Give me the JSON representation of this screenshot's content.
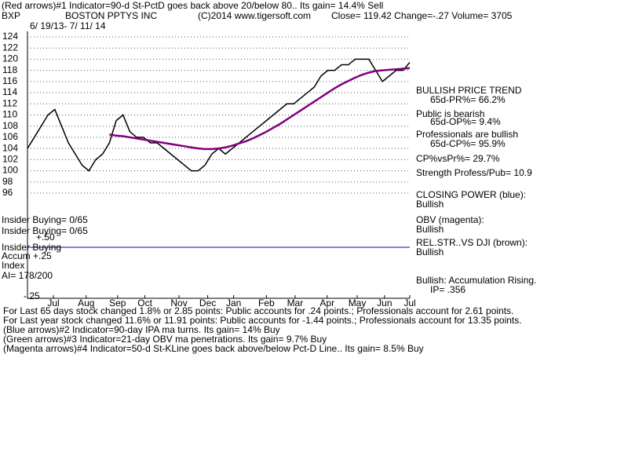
{
  "header": {
    "line1": "(Red arrows)#1 Indicator=90-d St-PctD goes back above 20/below 80.. Its gain= 14.4% Sell",
    "symbol": "BXP",
    "company": "BOSTON PPTYS INC",
    "copyright": "(C)2014 www.tigersoft.com",
    "quote": "Close= 119.42  Change=-.27  Volume= 3705",
    "dates": "6/ 19/13- 7/ 11/ 14"
  },
  "right_panel": [
    "BULLISH PRICE TREND",
    "65d-PR%= 66.2%",
    "Public is bearish",
    "65d-OP%= 9.4%",
    "Professionals are bullish",
    "65d-CP%= 95.9%",
    "CP%vsPr%= 29.7%",
    "Strength Profess/Pub= 10.9",
    "CLOSING POWER (blue):",
    "Bullish",
    "OBV (magenta):",
    "Bullish",
    "REL.STR..VS DJI (brown):",
    "Bullish",
    "Bullish: Accumulation Rising.",
    "IP= .356"
  ],
  "left_labels": [
    "Insider Buying= 0/65",
    "Insider Buying= 0/65",
    "+.50",
    "Insider Buying",
    "Accum  +.25",
    "Index",
    "AI= 178/200",
    "-.25"
  ],
  "footer": [
    "For Last 65 days stock changed  1.8% or  2.85 points:  Public accounts for  .24 points.;  Professionals account for  2.61 points.",
    "For Last year stock changed  11.6% or  11.91 points:  Public accounts for -1.44 points.;  Professionals account for  13.35 points.",
    "(Blue arrows)#2 Indicator=90-day IPA ma turns. Its gain= 14% Buy",
    "(Green arrows)#3 Indicator=21-day OBV ma penetrations. Its gain= 9.7% Buy",
    "(Magenta arrows)#4 Indicator=50-d St-KLine goes back above/below Pct-D Line.. Its gain= 8.5% Buy"
  ],
  "chart_data": {
    "type": "line",
    "ylim": [
      96,
      124
    ],
    "yticks": [
      96,
      98,
      100,
      102,
      104,
      106,
      108,
      110,
      112,
      114,
      116,
      118,
      120,
      122,
      124
    ],
    "xlim": [
      0,
      56
    ],
    "xticks": [
      {
        "value": 3.8,
        "label": "Jul"
      },
      {
        "value": 8.6,
        "label": "Aug"
      },
      {
        "value": 13.2,
        "label": "Sep"
      },
      {
        "value": 17.2,
        "label": "Oct"
      },
      {
        "value": 22.2,
        "label": "Nov"
      },
      {
        "value": 26.4,
        "label": "Dec"
      },
      {
        "value": 30.2,
        "label": "Jan"
      },
      {
        "value": 35,
        "label": "Feb"
      },
      {
        "value": 39.2,
        "label": "Mar"
      },
      {
        "value": 43.9,
        "label": "Apr"
      },
      {
        "value": 48.3,
        "label": "May"
      },
      {
        "value": 52.3,
        "label": "Jun"
      },
      {
        "value": 56,
        "label": "Jul"
      }
    ],
    "grid": true,
    "series": [
      {
        "color": "#000000",
        "values": [
          104,
          106,
          108,
          110,
          111,
          108,
          105,
          103,
          101,
          100,
          102,
          103,
          105,
          109,
          110,
          107,
          106,
          106,
          105,
          105,
          104,
          103,
          102,
          101,
          100,
          100,
          101,
          103,
          104,
          103,
          104,
          105,
          106,
          107,
          108,
          109,
          110,
          111,
          112,
          112,
          113,
          114,
          115,
          117,
          118,
          118,
          119,
          119,
          120,
          120,
          120,
          118,
          116,
          117,
          118,
          118,
          119.42
        ]
      },
      {
        "color": "#800080",
        "values": [
          null,
          null,
          null,
          null,
          null,
          null,
          null,
          null,
          null,
          null,
          null,
          null,
          106.5,
          106.3,
          106.2,
          106,
          105.8,
          105.6,
          105.4,
          105.2,
          105,
          104.8,
          104.6,
          104.4,
          104.2,
          104,
          103.9,
          103.9,
          104,
          104.2,
          104.5,
          104.9,
          105.3,
          105.8,
          106.4,
          107,
          107.7,
          108.4,
          109.2,
          110,
          110.8,
          111.6,
          112.4,
          113.2,
          114,
          114.8,
          115.5,
          116.1,
          116.7,
          117.2,
          117.6,
          117.9,
          118,
          118.1,
          118.2,
          118.3,
          118.4
        ]
      }
    ]
  }
}
